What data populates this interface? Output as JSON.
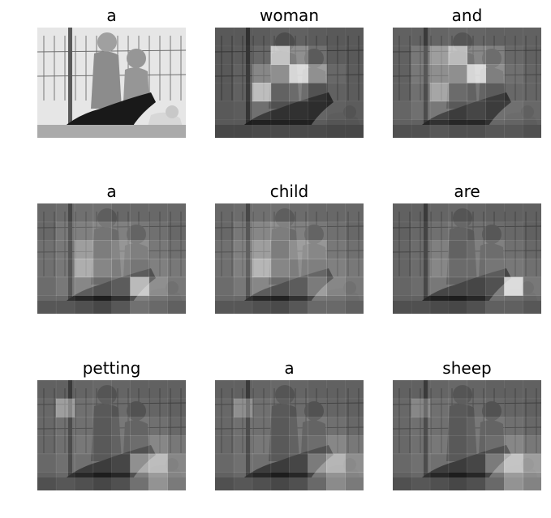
{
  "panels": [
    {
      "word": "a",
      "heat": [
        [
          0.05,
          0.05,
          0.05,
          0.05,
          0.05,
          0.05,
          0.05,
          0.05
        ],
        [
          0.05,
          0.05,
          0.05,
          0.05,
          0.05,
          0.05,
          0.05,
          0.05
        ],
        [
          0.05,
          0.05,
          0.05,
          0.05,
          0.05,
          0.05,
          0.05,
          0.05
        ],
        [
          0.05,
          0.05,
          0.05,
          0.05,
          0.05,
          0.05,
          0.05,
          0.05
        ],
        [
          0.05,
          0.05,
          0.05,
          0.05,
          0.05,
          0.05,
          0.05,
          0.05
        ],
        [
          0.05,
          0.05,
          0.05,
          0.05,
          0.05,
          0.05,
          0.05,
          0.05
        ]
      ],
      "original": true
    },
    {
      "word": "woman",
      "heat": [
        [
          0.1,
          0.1,
          0.12,
          0.15,
          0.15,
          0.12,
          0.1,
          0.1
        ],
        [
          0.1,
          0.12,
          0.2,
          0.85,
          0.45,
          0.25,
          0.12,
          0.1
        ],
        [
          0.1,
          0.15,
          0.4,
          0.55,
          0.95,
          0.55,
          0.2,
          0.12
        ],
        [
          0.1,
          0.15,
          0.75,
          0.3,
          0.35,
          0.2,
          0.15,
          0.12
        ],
        [
          0.1,
          0.12,
          0.25,
          0.2,
          0.2,
          0.18,
          0.15,
          0.12
        ],
        [
          0.1,
          0.1,
          0.12,
          0.12,
          0.12,
          0.12,
          0.1,
          0.1
        ]
      ],
      "original": false
    },
    {
      "word": "and",
      "heat": [
        [
          0.15,
          0.15,
          0.18,
          0.2,
          0.18,
          0.15,
          0.15,
          0.15
        ],
        [
          0.15,
          0.3,
          0.55,
          0.8,
          0.4,
          0.35,
          0.2,
          0.15
        ],
        [
          0.15,
          0.3,
          0.45,
          0.55,
          0.95,
          0.45,
          0.25,
          0.18
        ],
        [
          0.15,
          0.25,
          0.6,
          0.35,
          0.3,
          0.25,
          0.2,
          0.18
        ],
        [
          0.18,
          0.25,
          0.3,
          0.25,
          0.3,
          0.25,
          0.25,
          0.2
        ],
        [
          0.15,
          0.15,
          0.2,
          0.15,
          0.15,
          0.2,
          0.2,
          0.15
        ]
      ],
      "original": false
    },
    {
      "word": "a",
      "heat": [
        [
          0.2,
          0.22,
          0.25,
          0.25,
          0.2,
          0.2,
          0.2,
          0.2
        ],
        [
          0.2,
          0.3,
          0.35,
          0.4,
          0.35,
          0.3,
          0.25,
          0.2
        ],
        [
          0.25,
          0.3,
          0.55,
          0.45,
          0.5,
          0.45,
          0.3,
          0.25
        ],
        [
          0.25,
          0.3,
          0.65,
          0.5,
          0.45,
          0.4,
          0.35,
          0.3
        ],
        [
          0.22,
          0.3,
          0.4,
          0.35,
          0.4,
          0.85,
          0.45,
          0.3
        ],
        [
          0.2,
          0.2,
          0.15,
          0.1,
          0.2,
          0.35,
          0.3,
          0.25
        ]
      ],
      "original": false
    },
    {
      "word": "child",
      "heat": [
        [
          0.2,
          0.22,
          0.25,
          0.25,
          0.22,
          0.2,
          0.2,
          0.2
        ],
        [
          0.2,
          0.3,
          0.4,
          0.45,
          0.35,
          0.3,
          0.25,
          0.2
        ],
        [
          0.25,
          0.35,
          0.55,
          0.45,
          0.55,
          0.5,
          0.3,
          0.25
        ],
        [
          0.25,
          0.35,
          0.7,
          0.5,
          0.45,
          0.45,
          0.35,
          0.3
        ],
        [
          0.22,
          0.3,
          0.4,
          0.35,
          0.4,
          0.55,
          0.4,
          0.3
        ],
        [
          0.2,
          0.2,
          0.15,
          0.12,
          0.2,
          0.3,
          0.3,
          0.25
        ]
      ],
      "original": false
    },
    {
      "word": "are",
      "heat": [
        [
          0.15,
          0.15,
          0.18,
          0.2,
          0.18,
          0.15,
          0.15,
          0.15
        ],
        [
          0.15,
          0.2,
          0.25,
          0.3,
          0.25,
          0.22,
          0.2,
          0.15
        ],
        [
          0.18,
          0.22,
          0.35,
          0.3,
          0.35,
          0.35,
          0.25,
          0.2
        ],
        [
          0.18,
          0.22,
          0.4,
          0.35,
          0.35,
          0.4,
          0.3,
          0.25
        ],
        [
          0.18,
          0.22,
          0.3,
          0.3,
          0.3,
          0.35,
          0.95,
          0.3
        ],
        [
          0.15,
          0.15,
          0.12,
          0.1,
          0.15,
          0.25,
          0.25,
          0.2
        ]
      ],
      "original": false
    },
    {
      "word": "petting",
      "heat": [
        [
          0.15,
          0.15,
          0.18,
          0.2,
          0.18,
          0.15,
          0.15,
          0.15
        ],
        [
          0.2,
          0.55,
          0.25,
          0.25,
          0.22,
          0.2,
          0.18,
          0.15
        ],
        [
          0.2,
          0.25,
          0.25,
          0.25,
          0.3,
          0.3,
          0.25,
          0.2
        ],
        [
          0.2,
          0.25,
          0.3,
          0.25,
          0.3,
          0.35,
          0.4,
          0.3
        ],
        [
          0.2,
          0.25,
          0.25,
          0.25,
          0.3,
          0.65,
          0.75,
          0.4
        ],
        [
          0.15,
          0.2,
          0.15,
          0.1,
          0.15,
          0.35,
          0.55,
          0.4
        ]
      ],
      "original": false
    },
    {
      "word": "a",
      "heat": [
        [
          0.15,
          0.15,
          0.18,
          0.2,
          0.18,
          0.15,
          0.15,
          0.15
        ],
        [
          0.2,
          0.45,
          0.25,
          0.25,
          0.22,
          0.2,
          0.18,
          0.15
        ],
        [
          0.2,
          0.25,
          0.25,
          0.25,
          0.3,
          0.3,
          0.25,
          0.2
        ],
        [
          0.2,
          0.25,
          0.3,
          0.25,
          0.3,
          0.35,
          0.4,
          0.3
        ],
        [
          0.2,
          0.25,
          0.25,
          0.25,
          0.3,
          0.55,
          0.7,
          0.45
        ],
        [
          0.15,
          0.2,
          0.15,
          0.1,
          0.15,
          0.3,
          0.5,
          0.4
        ]
      ],
      "original": false
    },
    {
      "word": "sheep",
      "heat": [
        [
          0.15,
          0.15,
          0.18,
          0.2,
          0.18,
          0.15,
          0.15,
          0.15
        ],
        [
          0.2,
          0.4,
          0.25,
          0.25,
          0.22,
          0.2,
          0.18,
          0.15
        ],
        [
          0.2,
          0.25,
          0.25,
          0.25,
          0.3,
          0.3,
          0.25,
          0.2
        ],
        [
          0.2,
          0.25,
          0.3,
          0.25,
          0.3,
          0.35,
          0.4,
          0.3
        ],
        [
          0.2,
          0.25,
          0.25,
          0.25,
          0.3,
          0.55,
          0.8,
          0.55
        ],
        [
          0.15,
          0.2,
          0.15,
          0.1,
          0.15,
          0.3,
          0.55,
          0.45
        ]
      ],
      "original": false
    }
  ]
}
